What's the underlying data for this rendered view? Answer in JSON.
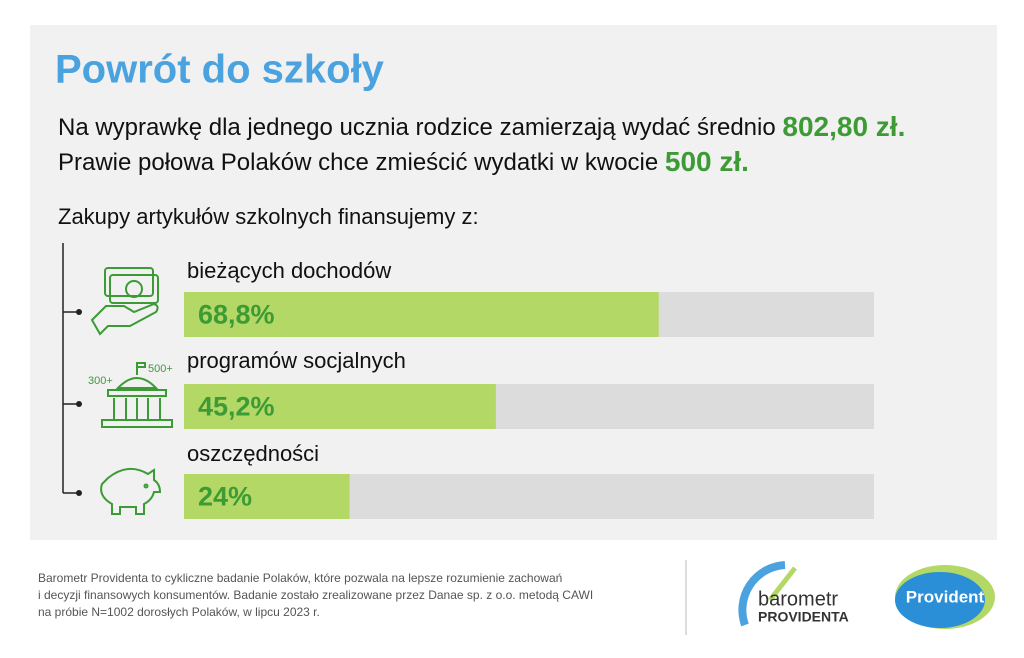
{
  "header": {
    "title": "Powrót do szkoły",
    "lines": [
      {
        "text": "Na wyprawkę dla jednego ucznia rodzice zamierzają wydać średnio",
        "highlight": "802,80 zł."
      },
      {
        "text": "Prawie połowa Polaków chce zmieścić wydatki w kwocie",
        "highlight": "500 zł."
      }
    ]
  },
  "chart_data": {
    "type": "bar",
    "title": "Zakupy artykułów szkolnych finansujemy z:",
    "categories": [
      "bieżących dochodów",
      "programów socjalnych",
      "oszczędności"
    ],
    "values": [
      68.8,
      45.2,
      24
    ],
    "value_labels": [
      "68,8%",
      "45,2%",
      "24%"
    ],
    "xlim": [
      0,
      100
    ],
    "color": "#b4d865",
    "track_color": "#dcdcdc"
  },
  "icon_labels": [
    "300+",
    "500+"
  ],
  "footer": {
    "note_lines": [
      "Barometr Providenta to cykliczne badanie Polaków, które pozwala na lepsze rozumienie zachowań",
      "i decyzji finansowych konsumentów. Badanie zostało zrealizowane przez Danae sp. z o.o. metodą CAWI",
      "na próbie N=1002 dorosłych Polaków, w lipcu 2023 r."
    ]
  },
  "logos": {
    "barometr": "barometr",
    "providenta": "PROVIDENTA",
    "provident": "Provident"
  }
}
